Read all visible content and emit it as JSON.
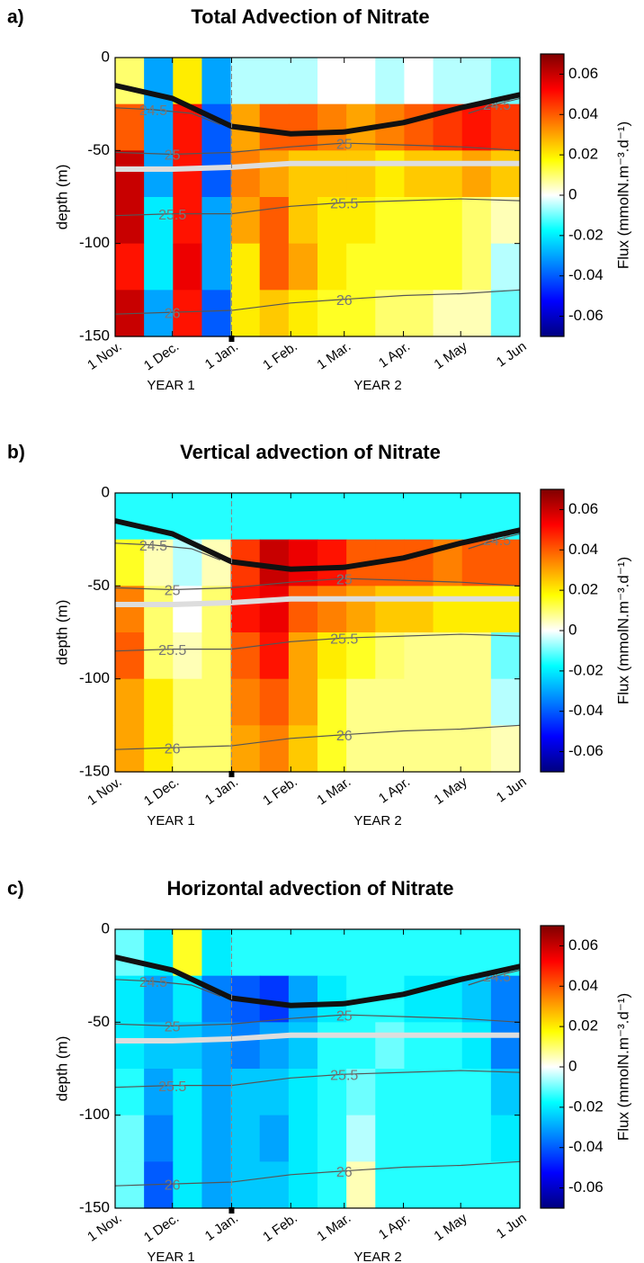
{
  "chart_data": [
    {
      "type": "contour",
      "panel_label": "a)",
      "title": "Total Advection of Nitrate",
      "ylabel": "depth (m)",
      "xlim": [
        0,
        212
      ],
      "xticks": [
        {
          "value": 0,
          "label": "1 Nov."
        },
        {
          "value": 30,
          "label": "1 Dec."
        },
        {
          "value": 61,
          "label": "1 Jan."
        },
        {
          "value": 92,
          "label": "1 Feb."
        },
        {
          "value": 120,
          "label": "1 Mar."
        },
        {
          "value": 151,
          "label": "1 Apr."
        },
        {
          "value": 181,
          "label": "1 May"
        },
        {
          "value": 212,
          "label": "1 Jun"
        }
      ],
      "ylim": [
        -150,
        0
      ],
      "yticks": [
        0,
        -50,
        -100,
        -150
      ],
      "vline": 61,
      "annotations": [
        "YEAR 1",
        "YEAR 2"
      ],
      "clim": [
        -0.07,
        0.07
      ],
      "cticks": [
        0.06,
        0.04,
        0.02,
        0,
        -0.02,
        -0.04,
        -0.06
      ],
      "clabel": "Flux (mmolN.m⁻³.d⁻¹)",
      "colormap": [
        "#00007f",
        "#0000ff",
        "#0080ff",
        "#00ffff",
        "#ffffff",
        "#ffff00",
        "#ff8000",
        "#ff0000",
        "#7f0000"
      ],
      "grid_x": [
        0,
        15.14,
        30.29,
        45.43,
        60.57,
        75.71,
        90.86,
        106,
        121.14,
        136.29,
        151.43,
        166.57,
        181.71,
        196.86,
        212
      ],
      "grid_y": [
        0,
        -25,
        -50,
        -75,
        -100,
        -125,
        -150
      ],
      "field": [
        [
          0.01,
          -0.03,
          0.02,
          -0.03,
          -0.005,
          -0.005,
          -0.005,
          0,
          0,
          -0.005,
          0,
          -0.005,
          -0.005,
          -0.01
        ],
        [
          0.04,
          -0.03,
          0.05,
          -0.04,
          0.03,
          0.04,
          0.04,
          0.035,
          0.03,
          0.035,
          0.04,
          0.045,
          0.05,
          0.045
        ],
        [
          0.06,
          -0.03,
          0.05,
          -0.04,
          0.035,
          0.03,
          0.025,
          0.025,
          0.025,
          0.02,
          0.025,
          0.025,
          0.03,
          0.025
        ],
        [
          0.06,
          -0.02,
          0.05,
          -0.03,
          0.03,
          0.04,
          0.025,
          0.02,
          0.02,
          0.015,
          0.015,
          0.015,
          0.01,
          0.005
        ],
        [
          0.05,
          -0.02,
          0.055,
          -0.03,
          0.02,
          0.04,
          0.03,
          0.02,
          0.015,
          0.015,
          0.015,
          0.015,
          0.01,
          -0.005
        ],
        [
          0.06,
          -0.03,
          0.05,
          -0.04,
          0.02,
          0.025,
          0.02,
          0.015,
          0.015,
          0.01,
          0.01,
          0.005,
          0.005,
          -0.01
        ]
      ],
      "contour_color": "#555555",
      "contours": [
        {
          "name": "24.5",
          "x": [
            0,
            20,
            40,
            55,
            null,
            185,
            200,
            212
          ],
          "y": [
            -27,
            -28,
            -30,
            -36,
            null,
            -30,
            -25,
            -22
          ]
        },
        {
          "name": "25",
          "x": [
            0,
            30,
            61,
            92,
            120,
            151,
            181,
            212
          ],
          "y": [
            -51,
            -52,
            -51,
            -48,
            -46,
            -47,
            -48,
            -50
          ]
        },
        {
          "name": "25.5",
          "x": [
            0,
            30,
            61,
            92,
            120,
            151,
            181,
            212
          ],
          "y": [
            -85,
            -84,
            -84,
            -80,
            -78,
            -77,
            -76,
            -77
          ]
        },
        {
          "name": "26",
          "x": [
            0,
            30,
            61,
            92,
            120,
            151,
            181,
            212
          ],
          "y": [
            -138,
            -137,
            -136,
            -132,
            -130,
            -128,
            -127,
            -125
          ]
        }
      ],
      "lines": [
        {
          "color": "#111111",
          "x": [
            0,
            30,
            61,
            92,
            120,
            151,
            181,
            212
          ],
          "y": [
            -15,
            -22,
            -37,
            -41,
            -40,
            -35,
            -27,
            -20
          ]
        },
        {
          "color": "#dddddd",
          "x": [
            0,
            30,
            61,
            92,
            120,
            151,
            181,
            212
          ],
          "y": [
            -60,
            -60,
            -59,
            -57,
            -57,
            -57,
            -57,
            -57
          ]
        }
      ]
    },
    {
      "type": "contour",
      "panel_label": "b)",
      "title": "Vertical advection of Nitrate",
      "ylabel": "depth (m)",
      "xlim": [
        0,
        212
      ],
      "xticks": [
        {
          "value": 0,
          "label": "1 Nov."
        },
        {
          "value": 30,
          "label": "1 Dec."
        },
        {
          "value": 61,
          "label": "1 Jan."
        },
        {
          "value": 92,
          "label": "1 Feb."
        },
        {
          "value": 120,
          "label": "1 Mar."
        },
        {
          "value": 151,
          "label": "1 Apr."
        },
        {
          "value": 181,
          "label": "1 May"
        },
        {
          "value": 212,
          "label": "1 Jun"
        }
      ],
      "ylim": [
        -150,
        0
      ],
      "yticks": [
        0,
        -50,
        -100,
        -150
      ],
      "vline": 61,
      "annotations": [
        "YEAR 1",
        "YEAR 2"
      ],
      "clim": [
        -0.07,
        0.07
      ],
      "cticks": [
        0.06,
        0.04,
        0.02,
        0,
        -0.02,
        -0.04,
        -0.06
      ],
      "clabel": "Flux (mmolN.m⁻³.d⁻¹)",
      "colormap": [
        "#00007f",
        "#0000ff",
        "#0080ff",
        "#00ffff",
        "#ffffff",
        "#ffff00",
        "#ff8000",
        "#ff0000",
        "#7f0000"
      ],
      "grid_x": [
        0,
        15.14,
        30.29,
        45.43,
        60.57,
        75.71,
        90.86,
        106,
        121.14,
        136.29,
        151.43,
        166.57,
        181.71,
        196.86,
        212
      ],
      "grid_y": [
        0,
        -25,
        -50,
        -75,
        -100,
        -125,
        -150
      ],
      "field": [
        [
          -0.015,
          -0.015,
          -0.015,
          -0.015,
          -0.015,
          -0.015,
          -0.015,
          -0.015,
          -0.015,
          -0.015,
          -0.015,
          -0.015,
          -0.015,
          -0.015
        ],
        [
          0.015,
          0.005,
          -0.005,
          0.005,
          0.045,
          0.06,
          0.055,
          0.05,
          0.04,
          0.04,
          0.04,
          0.035,
          0.04,
          0.04
        ],
        [
          0.035,
          0.01,
          0,
          0.01,
          0.05,
          0.055,
          0.04,
          0.035,
          0.03,
          0.025,
          0.025,
          0.02,
          0.02,
          0.02
        ],
        [
          0.04,
          0.01,
          0.005,
          0.01,
          0.04,
          0.05,
          0.03,
          0.02,
          0.015,
          0.01,
          0.008,
          0.008,
          0.008,
          -0.01
        ],
        [
          0.03,
          0.02,
          0.01,
          0.01,
          0.035,
          0.04,
          0.03,
          0.015,
          0.008,
          0.008,
          0.008,
          0.008,
          0.008,
          -0.005
        ],
        [
          0.03,
          0.02,
          0.01,
          0.01,
          0.03,
          0.035,
          0.025,
          0.015,
          0.008,
          0.008,
          0.008,
          0.008,
          0.008,
          0.005
        ]
      ],
      "contour_color": "#555555",
      "contours": [
        {
          "name": "24.5",
          "x": [
            0,
            20,
            40,
            55,
            null,
            185,
            200,
            212
          ],
          "y": [
            -27,
            -28,
            -30,
            -36,
            null,
            -30,
            -25,
            -22
          ]
        },
        {
          "name": "25",
          "x": [
            0,
            30,
            61,
            92,
            120,
            151,
            181,
            212
          ],
          "y": [
            -51,
            -52,
            -51,
            -48,
            -46,
            -47,
            -48,
            -50
          ]
        },
        {
          "name": "25.5",
          "x": [
            0,
            30,
            61,
            92,
            120,
            151,
            181,
            212
          ],
          "y": [
            -85,
            -84,
            -84,
            -80,
            -78,
            -77,
            -76,
            -77
          ]
        },
        {
          "name": "26",
          "x": [
            0,
            30,
            61,
            92,
            120,
            151,
            181,
            212
          ],
          "y": [
            -138,
            -137,
            -136,
            -132,
            -130,
            -128,
            -127,
            -125
          ]
        }
      ],
      "lines": [
        {
          "color": "#111111",
          "x": [
            0,
            30,
            61,
            92,
            120,
            151,
            181,
            212
          ],
          "y": [
            -15,
            -22,
            -37,
            -41,
            -40,
            -35,
            -27,
            -20
          ]
        },
        {
          "color": "#dddddd",
          "x": [
            0,
            30,
            61,
            92,
            120,
            151,
            181,
            212
          ],
          "y": [
            -60,
            -60,
            -59,
            -57,
            -57,
            -57,
            -57,
            -57
          ]
        }
      ]
    },
    {
      "type": "contour",
      "panel_label": "c)",
      "title": "Horizontal advection of Nitrate",
      "ylabel": "depth (m)",
      "xlim": [
        0,
        212
      ],
      "xticks": [
        {
          "value": 0,
          "label": "1 Nov."
        },
        {
          "value": 30,
          "label": "1 Dec."
        },
        {
          "value": 61,
          "label": "1 Jan."
        },
        {
          "value": 92,
          "label": "1 Feb."
        },
        {
          "value": 120,
          "label": "1 Mar."
        },
        {
          "value": 151,
          "label": "1 Apr."
        },
        {
          "value": 181,
          "label": "1 May"
        },
        {
          "value": 212,
          "label": "1 Jun"
        }
      ],
      "ylim": [
        -150,
        0
      ],
      "yticks": [
        0,
        -50,
        -100,
        -150
      ],
      "vline": 61,
      "annotations": [
        "YEAR 1",
        "YEAR 2"
      ],
      "clim": [
        -0.07,
        0.07
      ],
      "cticks": [
        0.06,
        0.04,
        0.02,
        0,
        -0.02,
        -0.04,
        -0.06
      ],
      "clabel": "Flux (mmolN.m⁻³.d⁻¹)",
      "colormap": [
        "#00007f",
        "#0000ff",
        "#0080ff",
        "#00ffff",
        "#ffffff",
        "#ffff00",
        "#ff8000",
        "#ff0000",
        "#7f0000"
      ],
      "grid_x": [
        0,
        15.14,
        30.29,
        45.43,
        60.57,
        75.71,
        90.86,
        106,
        121.14,
        136.29,
        151.43,
        166.57,
        181.71,
        196.86,
        212
      ],
      "grid_y": [
        0,
        -25,
        -50,
        -75,
        -100,
        -125,
        -150
      ],
      "field": [
        [
          -0.01,
          -0.02,
          0.015,
          -0.02,
          -0.015,
          -0.015,
          -0.015,
          -0.015,
          -0.015,
          -0.015,
          -0.015,
          -0.015,
          -0.015,
          -0.015
        ],
        [
          -0.02,
          -0.03,
          -0.02,
          -0.035,
          -0.04,
          -0.045,
          -0.03,
          -0.02,
          -0.015,
          -0.015,
          -0.02,
          -0.02,
          -0.025,
          -0.035
        ],
        [
          -0.02,
          -0.025,
          -0.025,
          -0.03,
          -0.035,
          -0.03,
          -0.025,
          -0.015,
          -0.015,
          -0.01,
          -0.015,
          -0.015,
          -0.02,
          -0.035
        ],
        [
          -0.015,
          -0.03,
          -0.02,
          -0.03,
          -0.025,
          -0.025,
          -0.02,
          -0.015,
          -0.01,
          -0.015,
          -0.015,
          -0.015,
          -0.015,
          -0.025
        ],
        [
          -0.01,
          -0.035,
          -0.02,
          -0.03,
          -0.025,
          -0.03,
          -0.02,
          -0.015,
          -0.005,
          -0.015,
          -0.015,
          -0.015,
          -0.015,
          -0.02
        ],
        [
          -0.01,
          -0.04,
          -0.02,
          -0.03,
          -0.025,
          -0.025,
          -0.02,
          -0.015,
          0.005,
          -0.015,
          -0.015,
          -0.015,
          -0.015,
          -0.015
        ]
      ],
      "contour_color": "#555555",
      "contours": [
        {
          "name": "24.5",
          "x": [
            0,
            20,
            40,
            55,
            null,
            185,
            200,
            212
          ],
          "y": [
            -27,
            -28,
            -30,
            -36,
            null,
            -30,
            -25,
            -22
          ]
        },
        {
          "name": "25",
          "x": [
            0,
            30,
            61,
            92,
            120,
            151,
            181,
            212
          ],
          "y": [
            -51,
            -52,
            -51,
            -48,
            -46,
            -47,
            -48,
            -50
          ]
        },
        {
          "name": "25.5",
          "x": [
            0,
            30,
            61,
            92,
            120,
            151,
            181,
            212
          ],
          "y": [
            -85,
            -84,
            -84,
            -80,
            -78,
            -77,
            -76,
            -77
          ]
        },
        {
          "name": "26",
          "x": [
            0,
            30,
            61,
            92,
            120,
            151,
            181,
            212
          ],
          "y": [
            -138,
            -137,
            -136,
            -132,
            -130,
            -128,
            -127,
            -125
          ]
        }
      ],
      "lines": [
        {
          "color": "#111111",
          "x": [
            0,
            30,
            61,
            92,
            120,
            151,
            181,
            212
          ],
          "y": [
            -15,
            -22,
            -37,
            -41,
            -40,
            -35,
            -27,
            -20
          ]
        },
        {
          "color": "#dddddd",
          "x": [
            0,
            30,
            61,
            92,
            120,
            151,
            181,
            212
          ],
          "y": [
            -60,
            -60,
            -59,
            -57,
            -57,
            -57,
            -57,
            -57
          ]
        }
      ]
    }
  ]
}
